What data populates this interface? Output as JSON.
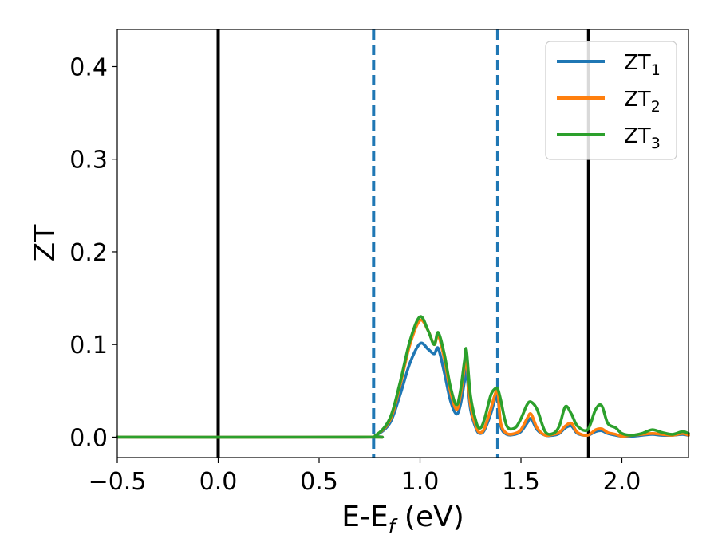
{
  "chart_data": {
    "type": "line",
    "xlabel": {
      "main": "E-E",
      "sub": "f",
      "tail": " (eV)"
    },
    "ylabel": "ZT",
    "xlim": [
      -0.5,
      2.33
    ],
    "ylim": [
      -0.022,
      0.44
    ],
    "xticks": [
      -0.5,
      0.0,
      0.5,
      1.0,
      1.5,
      2.0
    ],
    "xtick_labels": [
      "−0.5",
      "0.0",
      "0.5",
      "1.0",
      "1.5",
      "2.0"
    ],
    "yticks": [
      0.0,
      0.1,
      0.2,
      0.3,
      0.4
    ],
    "ytick_labels": [
      "0.0",
      "0.1",
      "0.2",
      "0.3",
      "0.4"
    ],
    "grid": false,
    "legend_position": "top-right",
    "vlines": [
      {
        "x": 0.0,
        "style": "solid",
        "color": "#000000"
      },
      {
        "x": 0.77,
        "style": "dashed",
        "color": "#1f77b4"
      },
      {
        "x": 1.385,
        "style": "dashed",
        "color": "#1f77b4"
      },
      {
        "x": 1.835,
        "style": "solid",
        "color": "#000000"
      }
    ],
    "series": [
      {
        "name": "ZT",
        "name_sub": "1",
        "color": "#1f77b4",
        "x": [
          -0.5,
          0.7,
          0.78,
          0.85,
          0.9,
          0.95,
          1.0,
          1.04,
          1.07,
          1.09,
          1.12,
          1.15,
          1.18,
          1.2,
          1.22,
          1.23,
          1.25,
          1.28,
          1.3,
          1.32,
          1.35,
          1.37,
          1.385,
          1.4,
          1.43,
          1.47,
          1.5,
          1.53,
          1.55,
          1.58,
          1.62,
          1.66,
          1.69,
          1.72,
          1.75,
          1.78,
          1.83,
          1.87,
          1.9,
          1.93,
          1.97,
          2.0,
          2.05,
          2.1,
          2.15,
          2.2,
          2.25,
          2.3,
          2.33
        ],
        "y": [
          0.0,
          0.0,
          0.002,
          0.015,
          0.045,
          0.08,
          0.101,
          0.095,
          0.09,
          0.096,
          0.07,
          0.04,
          0.025,
          0.035,
          0.06,
          0.072,
          0.03,
          0.008,
          0.004,
          0.008,
          0.025,
          0.04,
          0.045,
          0.012,
          0.003,
          0.003,
          0.006,
          0.015,
          0.02,
          0.008,
          0.002,
          0.002,
          0.004,
          0.01,
          0.012,
          0.004,
          0.002,
          0.006,
          0.007,
          0.004,
          0.002,
          0.001,
          0.001,
          0.002,
          0.003,
          0.002,
          0.002,
          0.003,
          0.002
        ]
      },
      {
        "name": "ZT",
        "name_sub": "2",
        "color": "#ff7f0e",
        "x": [
          -0.5,
          0.7,
          0.78,
          0.85,
          0.9,
          0.95,
          1.0,
          1.04,
          1.07,
          1.09,
          1.12,
          1.15,
          1.18,
          1.2,
          1.22,
          1.23,
          1.25,
          1.28,
          1.3,
          1.32,
          1.35,
          1.37,
          1.385,
          1.4,
          1.43,
          1.47,
          1.5,
          1.53,
          1.55,
          1.58,
          1.62,
          1.66,
          1.69,
          1.72,
          1.75,
          1.78,
          1.83,
          1.87,
          1.9,
          1.93,
          1.97,
          2.0,
          2.05,
          2.1,
          2.15,
          2.2,
          2.25,
          2.3,
          2.33
        ],
        "y": [
          0.0,
          0.0,
          0.002,
          0.018,
          0.055,
          0.1,
          0.126,
          0.115,
          0.1,
          0.11,
          0.085,
          0.05,
          0.03,
          0.045,
          0.075,
          0.085,
          0.035,
          0.01,
          0.005,
          0.01,
          0.03,
          0.045,
          0.05,
          0.015,
          0.004,
          0.004,
          0.008,
          0.02,
          0.025,
          0.01,
          0.002,
          0.003,
          0.005,
          0.012,
          0.015,
          0.005,
          0.002,
          0.008,
          0.009,
          0.005,
          0.003,
          0.001,
          0.002,
          0.003,
          0.004,
          0.003,
          0.002,
          0.004,
          0.002
        ]
      },
      {
        "name": "ZT",
        "name_sub": "3",
        "color": "#2ca02c",
        "x": [
          -0.5,
          0.7,
          0.78,
          0.85,
          0.9,
          0.95,
          1.0,
          1.04,
          1.07,
          1.09,
          1.12,
          1.15,
          1.18,
          1.2,
          1.22,
          1.23,
          1.25,
          1.28,
          1.3,
          1.32,
          1.35,
          1.37,
          1.385,
          1.4,
          1.43,
          1.47,
          1.5,
          1.53,
          1.55,
          1.58,
          1.62,
          1.66,
          1.69,
          1.72,
          1.75,
          1.78,
          1.83,
          1.87,
          1.9,
          1.93,
          1.97,
          2.0,
          2.05,
          2.1,
          2.15,
          2.2,
          2.25,
          2.3,
          2.33
        ],
        "y": [
          0.0,
          0.0,
          0.002,
          0.02,
          0.058,
          0.104,
          0.13,
          0.115,
          0.1,
          0.113,
          0.09,
          0.055,
          0.035,
          0.05,
          0.082,
          0.094,
          0.045,
          0.015,
          0.01,
          0.02,
          0.045,
          0.052,
          0.052,
          0.04,
          0.012,
          0.01,
          0.02,
          0.035,
          0.038,
          0.03,
          0.006,
          0.004,
          0.012,
          0.033,
          0.025,
          0.012,
          0.008,
          0.03,
          0.034,
          0.015,
          0.01,
          0.004,
          0.002,
          0.004,
          0.008,
          0.005,
          0.003,
          0.006,
          0.004
        ]
      }
    ]
  }
}
